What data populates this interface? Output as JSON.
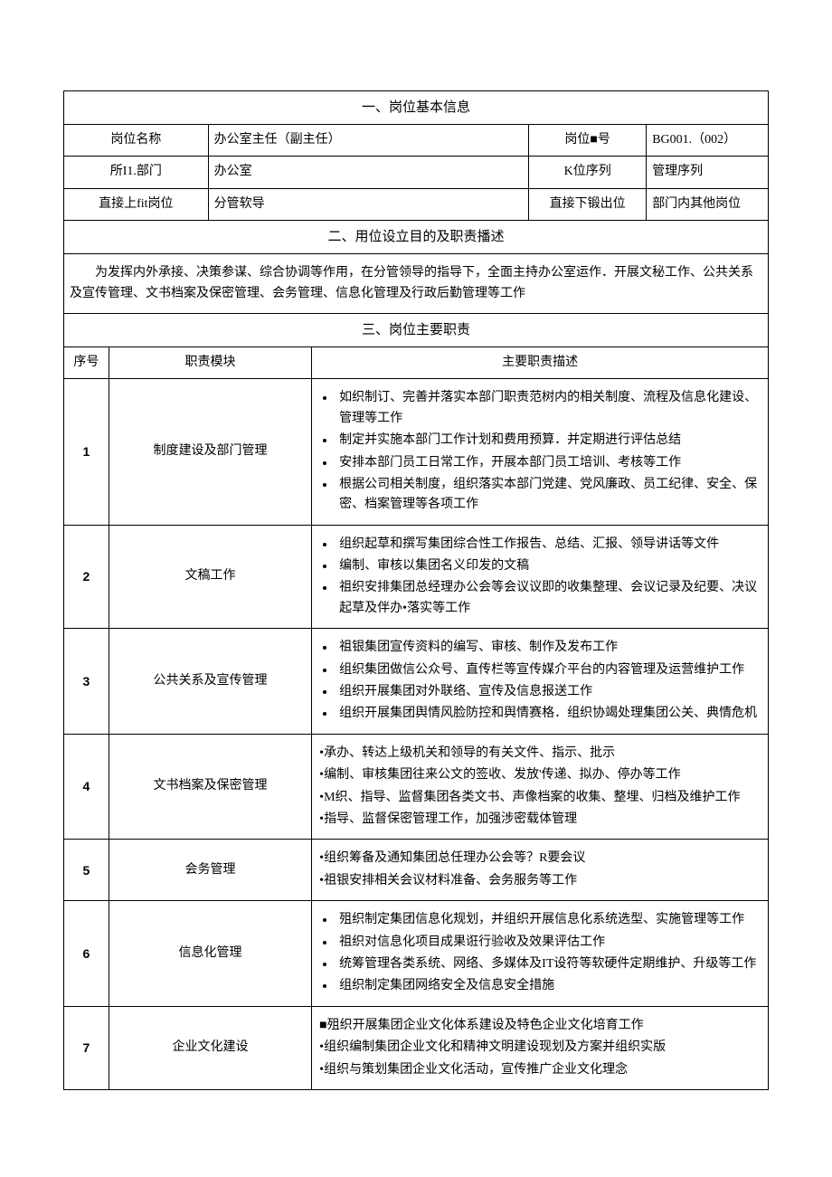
{
  "section1": {
    "title": "一、岗位基本信息",
    "rows": [
      {
        "l1": "岗位名称",
        "v1": "办公室主任（副主任）",
        "l2": "岗位■号",
        "v2": "BG001.（002）"
      },
      {
        "l1": "所I1.部门",
        "v1": "办公室",
        "l2": "K位序列",
        "v2": "管理序列"
      },
      {
        "l1": "直接上fit岗位",
        "v1": "分管软导",
        "l2": "直接下锻出位",
        "v2": "部门内其他岗位"
      }
    ]
  },
  "section2": {
    "title": "二、用位设立目的及职责播述",
    "description": "　　为发挥内外承接、决策参谋、综合协调等作用，在分管领导的指导下，全面主持办公室运作．开展文秘工作、公共关系及宣传管理、文书档案及保密管理、会务管理、信息化管理及行政后勤管理等工作"
  },
  "section3": {
    "title": "三、岗位主要职责",
    "header": {
      "seq": "序号",
      "module": "职责模块",
      "desc": "主要职责描述"
    },
    "rows": [
      {
        "seq": "1",
        "module": "制度建设及部门管理",
        "style": "bullets",
        "items": [
          "如织制订、完善并落实本部门职责范树内的相关制度、流程及信息化建设、管理等工作",
          "制定并实施本部门工作计划和费用预算．并定期进行评估总结",
          "安排本部门员工日常工作，开展本部门员工培训、考核等工作",
          "根据公司相关制度，组织落实本部门党建、党风廉政、员工纪律、安全、保密、档案管理等各项工作"
        ]
      },
      {
        "seq": "2",
        "module": "文稿工作",
        "style": "bullets",
        "items": [
          "组织起草和撰写集团综合性工作报告、总结、汇报、领导讲话等文件",
          "编制、审核以集团名义印发的文稿",
          "祖织安排集团总经理办公会等会议议即的收集整理、会议记录及纪要、决议起草及伴办•落实等工作"
        ]
      },
      {
        "seq": "3",
        "module": "公共关系及宣传管理",
        "style": "bullets",
        "items": [
          "祖银集团宣传资料的编写、审核、制作及发布工作",
          "组织集团做信公众号、直传栏等宣传媒介平台的内容管理及运营维护工作",
          "组织开展集团对外联络、宣传及信息报送工作",
          "组织开展集团舆情风脸防控和舆情赛格．组织协竭处理集团公关、典情危机"
        ]
      },
      {
        "seq": "4",
        "module": "文书档案及保密管理",
        "style": "plain",
        "items": [
          "•承办、转达上级机关和领导的有关文件、指示、批示",
          "•编制、审核集团往来公文的签收、发放'传递、拟办、停办等工作",
          "•M织、指导、监督集团各类文书、声像档案的收集、整埋、归档及维护工作",
          "•指导、监督保密管理工作，加强涉密载体管理"
        ]
      },
      {
        "seq": "5",
        "module": "会务管理",
        "style": "plain",
        "items": [
          "•组织筹备及通知集团总任理办公会等？R要会议",
          "•祖银安排相关会议材料准备、会务服务等工作"
        ]
      },
      {
        "seq": "6",
        "module": "信息化管理",
        "style": "bullets",
        "items": [
          "殂织制定集团信息化规划，并组织开展信息化系统选型、实施管理等工作",
          "祖织对信息化项目成果诳行验收及效果评估工作",
          "统筹管理各类系统、网络、多媒体及IT设符等软硬件定期维护、升级等工作",
          "组织制定集团网络安全及信息安全措施"
        ]
      },
      {
        "seq": "7",
        "module": "企业文化建设",
        "style": "plain",
        "items": [
          "■殂织开展集团企业文化体系建设及特色企业文化培育工作",
          "•组织编制集团企业文化和精神文明建设现划及方案并组织实版",
          "•组织与策划集团企业文化活动，宣传推广企业文化理念"
        ]
      }
    ]
  },
  "layout": {
    "col_widths_pct": [
      6.4,
      14.1,
      14.7,
      30.8,
      16.7,
      17.3
    ],
    "border_color": "#000000",
    "background_color": "#ffffff",
    "text_color": "#000000",
    "base_font_size_pt": 10.5,
    "font_family": "SimSun"
  }
}
